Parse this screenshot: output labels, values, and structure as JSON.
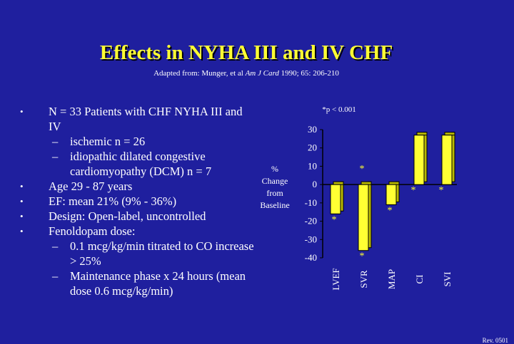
{
  "slide": {
    "title": "Effects in NYHA III and IV CHF",
    "subtitle_prefix": "Adapted from: Munger, et al ",
    "subtitle_journal": "Am J Card",
    "subtitle_suffix": " 1990; 65: 206-210",
    "footer": "Rev. 0501"
  },
  "bullets": [
    {
      "level": 1,
      "text": "N = 33 Patients with CHF NYHA III and IV"
    },
    {
      "level": 2,
      "text": "ischemic n = 26"
    },
    {
      "level": 2,
      "text": "idiopathic dilated congestive cardiomyopathy (DCM) n = 7"
    },
    {
      "level": 1,
      "text": "Age 29 - 87 years"
    },
    {
      "level": 1,
      "text": "EF:  mean 21% (9% - 36%)"
    },
    {
      "level": 1,
      "text": "Design: Open-label, uncontrolled"
    },
    {
      "level": 1,
      "text": "Fenoldopam dose:"
    },
    {
      "level": 2,
      "text": "0.1 mcg/kg/min titrated to CO increase > 25%"
    },
    {
      "level": 2,
      "text": "Maintenance phase x 24 hours (mean dose 0.6 mcg/kg/min)"
    }
  ],
  "chart_data": {
    "type": "bar",
    "note": "*p < 0.001",
    "ylabel": [
      "%",
      "Change",
      "from",
      "Baseline"
    ],
    "ylim": [
      -40,
      30
    ],
    "yticks": [
      30,
      20,
      10,
      0,
      -10,
      -20,
      -30,
      -40
    ],
    "categories": [
      "LVEF",
      "SVR",
      "MAP",
      "CI",
      "SVI"
    ],
    "values": [
      -16,
      -36,
      -11,
      27,
      27
    ],
    "significance": [
      "*",
      "*",
      "*",
      "*",
      "*"
    ],
    "extra_marker": "*",
    "colors": {
      "bar": "#ffff33",
      "bar_side": "#b8b800",
      "axis": "#000000",
      "text": "#ffffff",
      "star": "#ffff33"
    }
  }
}
